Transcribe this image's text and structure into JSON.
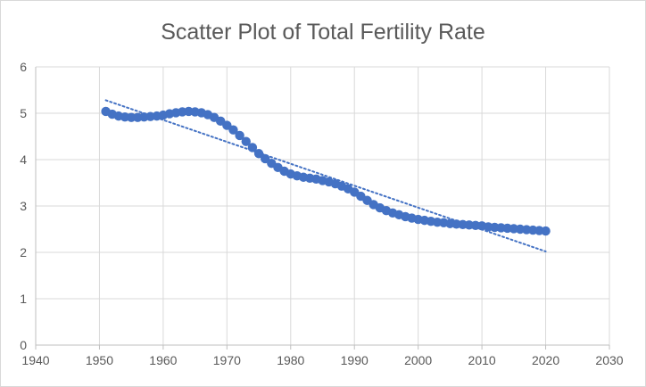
{
  "chart_data": {
    "type": "scatter",
    "title": "Scatter Plot of Total Fertility Rate",
    "xlabel": "",
    "ylabel": "",
    "xlim": [
      1940,
      2030
    ],
    "ylim": [
      0,
      6
    ],
    "x_ticks": [
      1940,
      1950,
      1960,
      1970,
      1980,
      1990,
      2000,
      2010,
      2020,
      2030
    ],
    "y_ticks": [
      0,
      1,
      2,
      3,
      4,
      5,
      6
    ],
    "grid": true,
    "legend": "none",
    "marker_color": "#4472C4",
    "trendline": {
      "type": "linear",
      "style": "dotted",
      "color": "#4472C4",
      "x": [
        1951,
        2020
      ],
      "y": [
        5.28,
        2.02
      ]
    },
    "series": [
      {
        "x": [
          1951,
          1952,
          1953,
          1954,
          1955,
          1956,
          1957,
          1958,
          1959,
          1960,
          1961,
          1962,
          1963,
          1964,
          1965,
          1966,
          1967,
          1968,
          1969,
          1970,
          1971,
          1972,
          1973,
          1974,
          1975,
          1976,
          1977,
          1978,
          1979,
          1980,
          1981,
          1982,
          1983,
          1984,
          1985,
          1986,
          1987,
          1988,
          1989,
          1990,
          1991,
          1992,
          1993,
          1994,
          1995,
          1996,
          1997,
          1998,
          1999,
          2000,
          2001,
          2002,
          2003,
          2004,
          2005,
          2006,
          2007,
          2008,
          2009,
          2010,
          2011,
          2012,
          2013,
          2014,
          2015,
          2016,
          2017,
          2018,
          2019,
          2020
        ],
        "y": [
          5.04,
          4.98,
          4.94,
          4.92,
          4.91,
          4.91,
          4.92,
          4.93,
          4.94,
          4.96,
          4.99,
          5.01,
          5.03,
          5.04,
          5.03,
          5.01,
          4.97,
          4.91,
          4.83,
          4.74,
          4.64,
          4.52,
          4.39,
          4.26,
          4.13,
          4.02,
          3.92,
          3.83,
          3.75,
          3.69,
          3.65,
          3.62,
          3.6,
          3.58,
          3.55,
          3.52,
          3.48,
          3.43,
          3.37,
          3.3,
          3.21,
          3.12,
          3.03,
          2.96,
          2.9,
          2.85,
          2.81,
          2.77,
          2.74,
          2.71,
          2.69,
          2.67,
          2.65,
          2.64,
          2.62,
          2.61,
          2.6,
          2.59,
          2.58,
          2.57,
          2.55,
          2.54,
          2.53,
          2.52,
          2.51,
          2.5,
          2.49,
          2.48,
          2.47,
          2.46
        ]
      }
    ]
  }
}
